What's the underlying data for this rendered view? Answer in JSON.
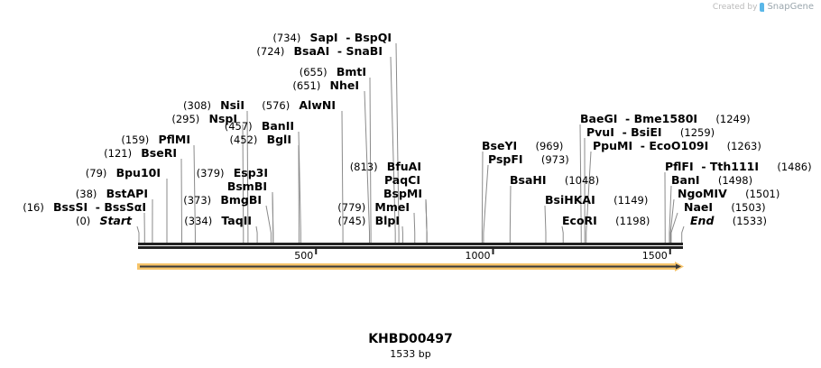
{
  "credit": {
    "prefix": "Created by",
    "brand": "SnapGene"
  },
  "sequence": {
    "name": "KHBD00497",
    "length_label": "1533 bp",
    "length": 1533
  },
  "ruler": {
    "ticks": [
      {
        "label": "500",
        "bp": 500
      },
      {
        "label": "1000",
        "bp": 1000
      },
      {
        "label": "1500",
        "bp": 1500
      }
    ]
  },
  "feature": {
    "color": "#f6c46a",
    "arrow_color": "#3a3a3a"
  },
  "sites": [
    {
      "name": "Start",
      "pos": "(0)",
      "bp": 0,
      "side": "left",
      "italic": true
    },
    {
      "name": "BssSI  - BssSαI",
      "pos": "(16)",
      "bp": 16,
      "side": "left"
    },
    {
      "name": "BstAPI",
      "pos": "(38)",
      "bp": 38,
      "side": "left"
    },
    {
      "name": "Bpu10I",
      "pos": "(79)",
      "bp": 79,
      "side": "left"
    },
    {
      "name": "BseRI",
      "pos": "(121)",
      "bp": 121,
      "side": "left"
    },
    {
      "name": "PflMI",
      "pos": "(159)",
      "bp": 159,
      "side": "left"
    },
    {
      "name": "NspI",
      "pos": "(295)",
      "bp": 295,
      "side": "left"
    },
    {
      "name": "NsiI",
      "pos": "(308)",
      "bp": 308,
      "side": "left"
    },
    {
      "name": "TaqII",
      "pos": "(334)",
      "bp": 334,
      "side": "left"
    },
    {
      "name": "BmgBI",
      "pos": "(373)",
      "bp": 373,
      "side": "left"
    },
    {
      "name": "BsmBI",
      "pos": "",
      "bp": 379,
      "side": "left"
    },
    {
      "name": "Esp3I",
      "pos": "(379)",
      "bp": 379,
      "side": "left"
    },
    {
      "name": "BglI",
      "pos": "(452)",
      "bp": 452,
      "side": "left"
    },
    {
      "name": "BanII",
      "pos": "(457)",
      "bp": 457,
      "side": "left"
    },
    {
      "name": "AlwNI",
      "pos": "(576)",
      "bp": 576,
      "side": "left"
    },
    {
      "name": "NheI",
      "pos": "(651)",
      "bp": 651,
      "side": "left"
    },
    {
      "name": "BmtI",
      "pos": "(655)",
      "bp": 655,
      "side": "left"
    },
    {
      "name": "BsaAI  - SnaBI",
      "pos": "(724)",
      "bp": 724,
      "side": "left"
    },
    {
      "name": "SapI  - BspQI",
      "pos": "(734)",
      "bp": 734,
      "side": "left"
    },
    {
      "name": "BlpI",
      "pos": "(745)",
      "bp": 745,
      "side": "left"
    },
    {
      "name": "MmeI",
      "pos": "(779)",
      "bp": 779,
      "side": "left"
    },
    {
      "name": "BspMI",
      "pos": "",
      "bp": 813,
      "side": "left"
    },
    {
      "name": "PaqCI",
      "pos": "",
      "bp": 813,
      "side": "left"
    },
    {
      "name": "BfuAI",
      "pos": "(813)",
      "bp": 813,
      "side": "left"
    },
    {
      "name": "BseYI",
      "pos": "(969)",
      "bp": 969,
      "side": "right"
    },
    {
      "name": "PspFI",
      "pos": "(973)",
      "bp": 973,
      "side": "right"
    },
    {
      "name": "BsaHI",
      "pos": "(1048)",
      "bp": 1048,
      "side": "right"
    },
    {
      "name": "BsiHKAI",
      "pos": "(1149)",
      "bp": 1149,
      "side": "right"
    },
    {
      "name": "EcoRI",
      "pos": "(1198)",
      "bp": 1198,
      "side": "right"
    },
    {
      "name": "BaeGI  - Bme1580I",
      "pos": "(1249)",
      "bp": 1249,
      "side": "right"
    },
    {
      "name": "PvuI  - BsiEI",
      "pos": "(1259)",
      "bp": 1259,
      "side": "right"
    },
    {
      "name": "PpuMI  - EcoO109I",
      "pos": "(1263)",
      "bp": 1263,
      "side": "right"
    },
    {
      "name": "PflFI  - Tth111I",
      "pos": "(1486)",
      "bp": 1486,
      "side": "right"
    },
    {
      "name": "BanI",
      "pos": "(1498)",
      "bp": 1498,
      "side": "right"
    },
    {
      "name": "NgoMIV",
      "pos": "(1501)",
      "bp": 1501,
      "side": "right"
    },
    {
      "name": "NaeI",
      "pos": "(1503)",
      "bp": 1503,
      "side": "right"
    },
    {
      "name": "End",
      "pos": "(1533)",
      "bp": 1533,
      "side": "right",
      "italic": true
    }
  ]
}
